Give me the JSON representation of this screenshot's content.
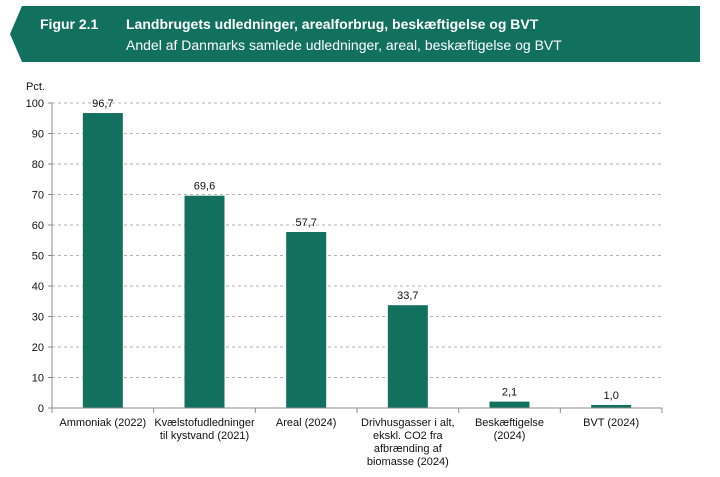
{
  "figure": {
    "label": "Figur 2.1",
    "title": "Landbrugets udledninger, arealforbrug, beskæftigelse og BVT",
    "subtitle": "Andel af Danmarks samlede udledninger, areal, beskæftigelse og BVT"
  },
  "colors": {
    "banner": "#12705f",
    "bar": "#12705f",
    "grid": "#b3b3b3",
    "axis": "#8c8c8c"
  },
  "chart_data": {
    "type": "bar",
    "title": "Landbrugets udledninger, arealforbrug, beskæftigelse og BVT",
    "subtitle": "Andel af Danmarks samlede udledninger, areal, beskæftigelse og BVT",
    "ylabel": "Pct.",
    "xlabel": "",
    "ylim": [
      0,
      100
    ],
    "yticks": [
      0,
      10,
      20,
      30,
      40,
      50,
      60,
      70,
      80,
      90,
      100
    ],
    "grid": true,
    "categories": [
      [
        "Ammoniak (2022)"
      ],
      [
        "Kvælstofudledninger",
        "til kystvand (2021)"
      ],
      [
        "Areal (2024)"
      ],
      [
        "Drivhusgasser i alt,",
        "ekskl. CO2 fra",
        "afbrænding af",
        "biomasse (2024)"
      ],
      [
        "Beskæftigelse",
        "(2024)"
      ],
      [
        "BVT (2024)"
      ]
    ],
    "values": [
      96.7,
      69.6,
      57.7,
      33.7,
      2.1,
      1.0
    ],
    "value_labels": [
      "96,7",
      "69,6",
      "57,7",
      "33,7",
      "2,1",
      "1,0"
    ]
  }
}
